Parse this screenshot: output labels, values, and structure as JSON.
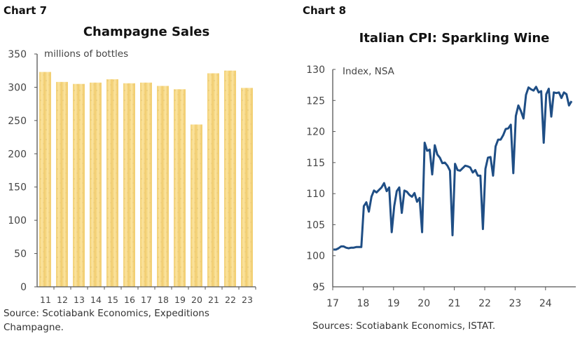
{
  "chart_data": [
    {
      "label": "Chart 7",
      "type": "bar",
      "title": "Champagne Sales",
      "unit_label": "millions of bottles",
      "categories": [
        "11",
        "12",
        "13",
        "14",
        "15",
        "16",
        "17",
        "18",
        "19",
        "20",
        "21",
        "22",
        "23"
      ],
      "values": [
        323,
        308,
        305,
        307,
        312,
        306,
        307,
        302,
        297,
        244,
        321,
        325,
        299
      ],
      "ylim": [
        0,
        350
      ],
      "yticks": [
        0,
        50,
        100,
        150,
        200,
        250,
        300,
        350
      ],
      "grid": false,
      "bar_color": "#f7d98a",
      "source": "Source: Scotiabank Economics, Expeditions Champagne."
    },
    {
      "label": "Chart 8",
      "type": "line",
      "title": "Italian CPI: Sparkling Wine",
      "unit_label": "Index, NSA",
      "xticks": [
        "17",
        "18",
        "19",
        "20",
        "21",
        "22",
        "23",
        "24"
      ],
      "start": "2017-01",
      "frequency": "monthly",
      "values": [
        101.0,
        101.0,
        101.2,
        101.5,
        101.5,
        101.3,
        101.2,
        101.3,
        101.3,
        101.4,
        101.4,
        101.4,
        108.0,
        108.6,
        107.1,
        109.5,
        110.5,
        110.2,
        110.6,
        111.0,
        111.7,
        110.4,
        111.0,
        103.8,
        108.0,
        110.4,
        111.0,
        106.9,
        110.5,
        110.3,
        109.8,
        109.5,
        110.1,
        108.7,
        109.3,
        103.8,
        118.2,
        116.9,
        117.1,
        113.1,
        117.8,
        116.3,
        115.8,
        114.9,
        115.0,
        114.5,
        113.7,
        103.3,
        114.8,
        113.8,
        113.7,
        114.1,
        114.5,
        114.4,
        114.2,
        113.4,
        113.8,
        112.9,
        112.9,
        104.3,
        114.0,
        115.8,
        115.9,
        112.9,
        117.6,
        118.7,
        118.7,
        119.4,
        120.4,
        120.5,
        121.1,
        113.3,
        122.5,
        124.2,
        123.3,
        122.1,
        125.9,
        127.1,
        126.8,
        126.6,
        127.2,
        126.3,
        126.5,
        118.2,
        126.0,
        126.9,
        122.4,
        126.3,
        126.2,
        126.3,
        125.4,
        126.3,
        126.0,
        124.2,
        124.9
      ],
      "ylim": [
        95,
        130
      ],
      "yticks": [
        95,
        100,
        105,
        110,
        115,
        120,
        125,
        130
      ],
      "grid": false,
      "line_color": "#1f4e85",
      "source": "Sources: Scotiabank Economics, ISTAT."
    }
  ]
}
